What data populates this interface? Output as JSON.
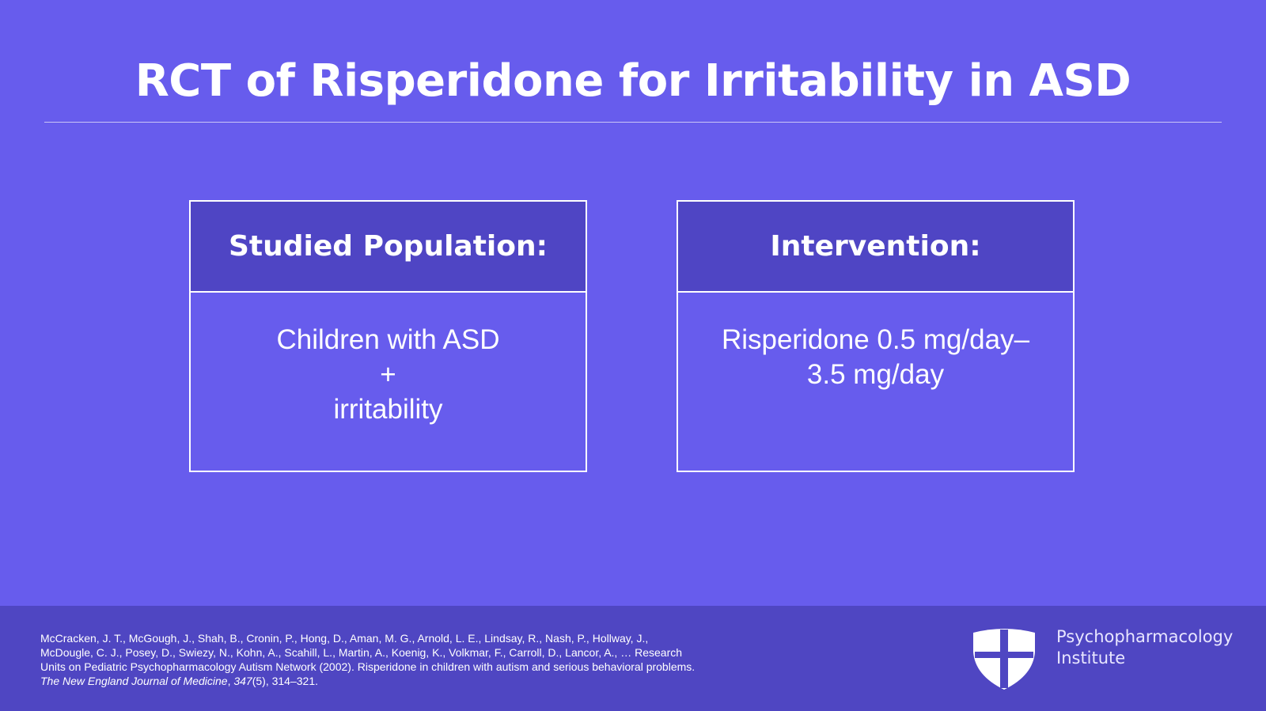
{
  "slide": {
    "title": "RCT of Risperidone for Irritability in ASD",
    "boxes": [
      {
        "header": "Studied Population:",
        "lines": [
          "Children with ASD",
          "+",
          "irritability"
        ]
      },
      {
        "header": "Intervention:",
        "lines": [
          "Risperidone 0.5 mg/day–",
          "3.5 mg/day"
        ]
      }
    ]
  },
  "footer": {
    "citation": [
      "McCracken, J. T., McGough, J., Shah, B., Cronin, P., Hong, D., Aman, M. G., Arnold, L. E., Lindsay, R., Nash, P., Hollway, J., McDougle, C. J., Posey, D., Swiezy, N., Kohn, A., Scahill, L., Martin, A., Koenig, K., Volkmar, F., Carroll, D., Lancor, A., … Research Units on Pediatric Psychopharmacology Autism Network (2002). Risperidone in children with autism and serious behavioral problems. ",
      "The New England Journal of Medicine",
      ", ",
      "347",
      "(5), 314–321."
    ],
    "logo": [
      "Psychopharmacology",
      "Institute"
    ]
  }
}
